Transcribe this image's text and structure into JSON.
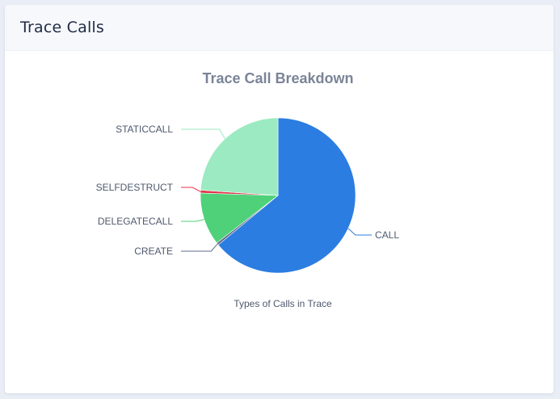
{
  "card": {
    "title": "Trace Calls"
  },
  "chart_data": {
    "type": "pie",
    "title": "Trace Call Breakdown",
    "caption": "Types of Calls in Trace",
    "categories": [
      "CALL",
      "CREATE",
      "DELEGATECALL",
      "SELFDESTRUCT",
      "STATICCALL"
    ],
    "values": [
      64.0,
      0.5,
      11.0,
      0.6,
      23.9
    ],
    "colors": [
      "#2b7de1",
      "#5e6b8c",
      "#4fd17a",
      "#e0344a",
      "#9beac1"
    ],
    "legend": "outside labels with leader lines"
  }
}
